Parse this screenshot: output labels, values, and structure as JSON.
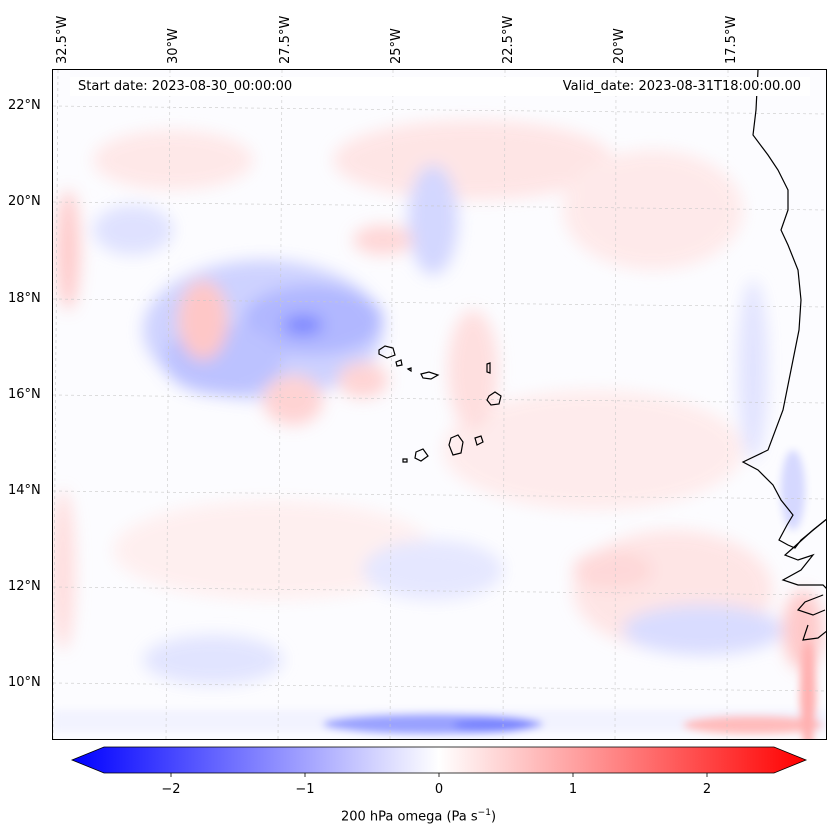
{
  "header": {
    "start_date": "Start date: 2023-08-30_00:00:00",
    "valid_date": "Valid_date: 2023-08-31T18:00:00.00"
  },
  "axes": {
    "lon_labels": [
      "32.5°W",
      "30°W",
      "27.5°W",
      "25°W",
      "22.5°W",
      "20°W",
      "17.5°W"
    ],
    "lat_labels": [
      "22°N",
      "20°N",
      "18°N",
      "16°N",
      "14°N",
      "12°N",
      "10°N"
    ]
  },
  "colorbar": {
    "ticks": [
      "−2",
      "−1",
      "0",
      "1",
      "2"
    ],
    "label_prefix": "200 hPa omega (Pa s",
    "label_sup": "−1",
    "label_suffix": ")",
    "range": [
      -2.5,
      2.5
    ],
    "colormap": "bwr",
    "extend": "both"
  },
  "colors": {
    "negative": "#0000ff",
    "neutral": "#ffffff",
    "positive": "#ff0000",
    "coastline": "#000000"
  },
  "features": {
    "coastline": "West African coast (Mauritania/Senegal) and Cape Verde islands"
  }
}
